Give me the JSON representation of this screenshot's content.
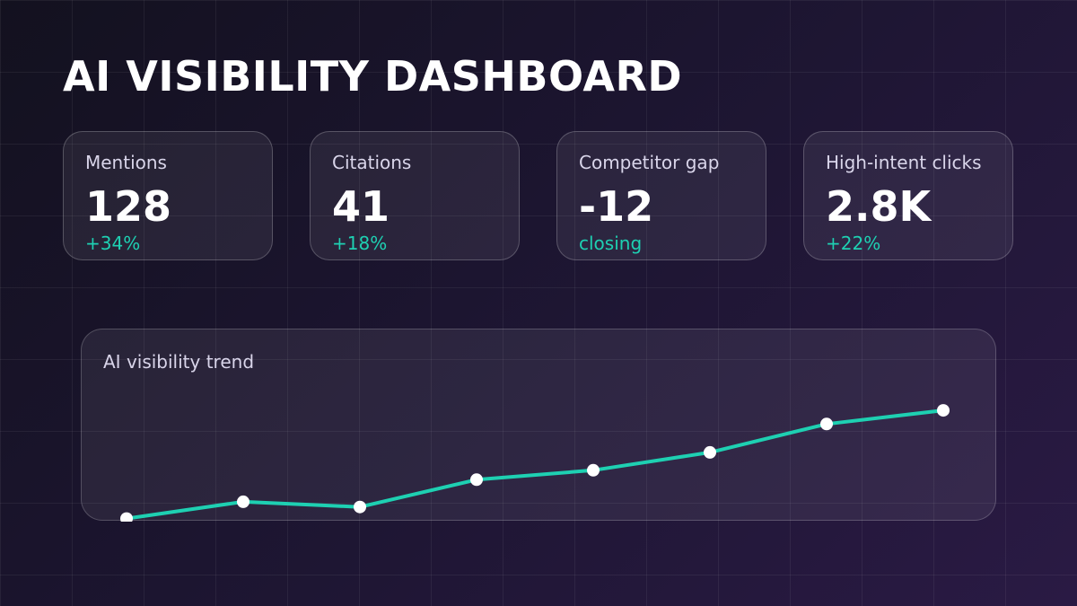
{
  "dashboard": {
    "title": "AI VISIBILITY DASHBOARD"
  },
  "metrics": [
    {
      "label": "Mentions",
      "value": "128",
      "change": "+34%"
    },
    {
      "label": "Citations",
      "value": "41",
      "change": "+18%"
    },
    {
      "label": "Competitor gap",
      "value": "-12",
      "change": "closing"
    },
    {
      "label": "High-intent clicks",
      "value": "2.8K",
      "change": "+22%"
    }
  ],
  "colors": {
    "accent": "#1ed0b2",
    "point": "#ffffff"
  },
  "trend": {
    "title": "AI visibility trend"
  },
  "chart_data": {
    "type": "line",
    "title": "AI visibility trend",
    "x": [
      1,
      2,
      3,
      4,
      5,
      6,
      7,
      8
    ],
    "series": [
      {
        "values": [
          10,
          18,
          15.5,
          28.5,
          33,
          41.5,
          55,
          61.5
        ]
      }
    ],
    "ylim": [
      0,
      100
    ],
    "grid": false,
    "axes_visible": false
  }
}
